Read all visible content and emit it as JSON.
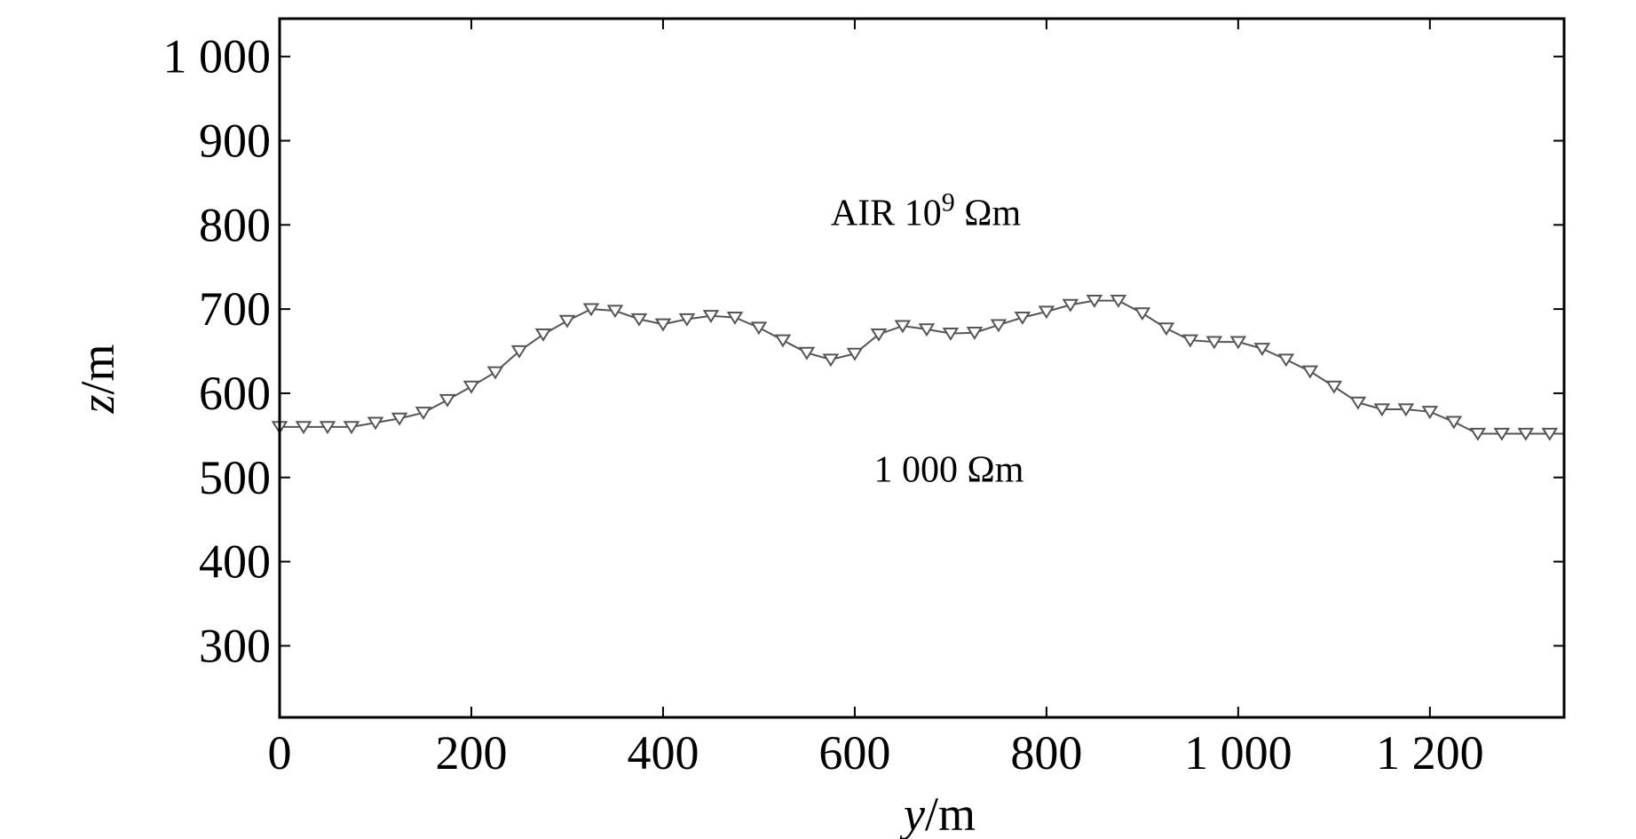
{
  "chart_data": {
    "type": "line",
    "xlabel": {
      "var": "y",
      "unit": "/m"
    },
    "ylabel": {
      "var": "z",
      "unit": "/m"
    },
    "xlim": [
      0,
      1340
    ],
    "ylim": [
      215,
      1045
    ],
    "xticks": [
      0,
      200,
      400,
      600,
      800,
      1000,
      1200
    ],
    "xtick_labels": [
      "0",
      "200",
      "400",
      "600",
      "800",
      "1 000",
      "1 200"
    ],
    "yticks": [
      300,
      400,
      500,
      600,
      700,
      800,
      900,
      1000
    ],
    "ytick_labels": [
      "300",
      "400",
      "500",
      "600",
      "700",
      "800",
      "900",
      "1 000"
    ],
    "grid": false,
    "marker": "triangle-down",
    "x": [
      0,
      25,
      50,
      75,
      100,
      125,
      150,
      175,
      200,
      225,
      250,
      275,
      300,
      325,
      350,
      375,
      400,
      425,
      450,
      475,
      500,
      525,
      550,
      575,
      600,
      625,
      650,
      675,
      700,
      725,
      750,
      775,
      800,
      825,
      850,
      875,
      900,
      925,
      950,
      975,
      1000,
      1025,
      1050,
      1075,
      1100,
      1125,
      1150,
      1175,
      1200,
      1225,
      1250,
      1275,
      1300,
      1325,
      1340
    ],
    "values": [
      560,
      560,
      560,
      560,
      565,
      570,
      577,
      592,
      608,
      625,
      650,
      670,
      686,
      700,
      698,
      688,
      682,
      688,
      692,
      690,
      678,
      663,
      648,
      640,
      647,
      670,
      680,
      676,
      671,
      672,
      681,
      690,
      697,
      705,
      710,
      710,
      695,
      677,
      663,
      661,
      661,
      653,
      640,
      626,
      608,
      589,
      581,
      581,
      578,
      566,
      552,
      552,
      552,
      552,
      552
    ],
    "annotations": [
      {
        "text": "AIR 10",
        "sup": "9",
        "suffix": " Ωm",
        "x": 575,
        "y": 800
      },
      {
        "text": "1 000 Ωm",
        "sup": "",
        "suffix": "",
        "x": 620,
        "y": 495
      }
    ]
  }
}
